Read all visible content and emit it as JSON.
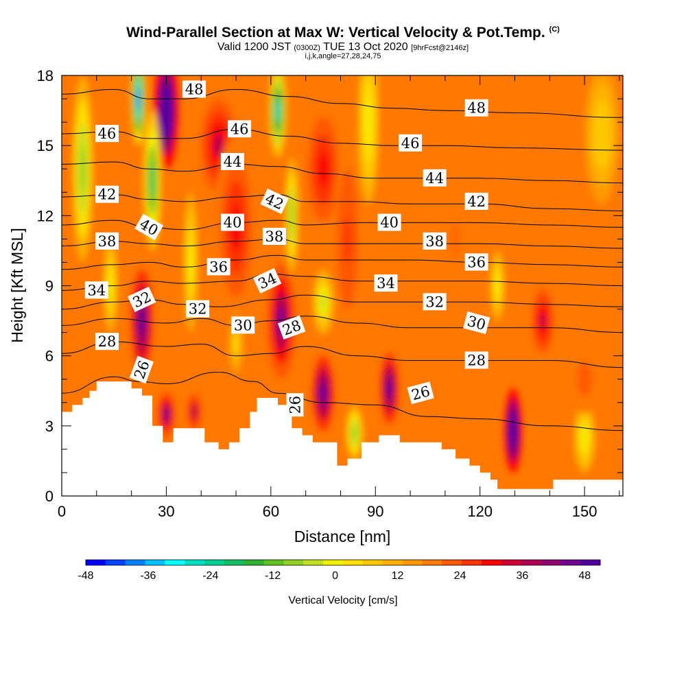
{
  "header": {
    "title": "Wind-Parallel Section at Max W: Vertical Velocity & Pot.Temp.",
    "title_mark": "(C)",
    "valid_prefix": "Valid 1200 JST",
    "valid_utc": "(0300Z)",
    "valid_date": "TUE 13 Oct 2020",
    "forecast": "[9hrFcst@2146z]",
    "grid_info": "i,j,k,angle=27,28,24,75"
  },
  "chart_data": {
    "type": "heatmap",
    "xlabel": "Distance [nm]",
    "ylabel": "Height [Kft MSL]",
    "xlim": [
      0,
      161
    ],
    "ylim": [
      0,
      18
    ],
    "x_ticks": [
      0,
      30,
      60,
      90,
      120,
      150
    ],
    "y_ticks": [
      0,
      3,
      6,
      9,
      12,
      15,
      18
    ],
    "colorbar": {
      "label": "Vertical Velocity [cm/s]",
      "range": [
        -48,
        51
      ],
      "step": 3,
      "tick_values": [
        -48,
        -36,
        -24,
        -12,
        0,
        12,
        24,
        36,
        48
      ],
      "colors": [
        "#0000ff",
        "#0040ff",
        "#0080ff",
        "#00c0ff",
        "#00ffff",
        "#00e0c0",
        "#00d090",
        "#10c060",
        "#30b030",
        "#60c020",
        "#90d020",
        "#c0e020",
        "#f0f000",
        "#ffe000",
        "#ffc800",
        "#ffb000",
        "#ff9800",
        "#ff7800",
        "#ff5800",
        "#ff3000",
        "#ff0000",
        "#d00030",
        "#b00050",
        "#900070",
        "#700090",
        "#5000a0"
      ]
    },
    "terrain_top_kft": [
      [
        0,
        3.6
      ],
      [
        3,
        3.6
      ],
      [
        3,
        3.9
      ],
      [
        6,
        3.9
      ],
      [
        6,
        4.2
      ],
      [
        8,
        4.2
      ],
      [
        8,
        4.5
      ],
      [
        10,
        4.5
      ],
      [
        10,
        4.9
      ],
      [
        20,
        4.9
      ],
      [
        20,
        4.6
      ],
      [
        23,
        4.6
      ],
      [
        23,
        4.3
      ],
      [
        26,
        4.3
      ],
      [
        26,
        3.0
      ],
      [
        29,
        3.0
      ],
      [
        29,
        2.3
      ],
      [
        32,
        2.3
      ],
      [
        32,
        2.9
      ],
      [
        41,
        2.9
      ],
      [
        41,
        2.3
      ],
      [
        45,
        2.3
      ],
      [
        45,
        2.0
      ],
      [
        48,
        2.0
      ],
      [
        48,
        2.3
      ],
      [
        51,
        2.3
      ],
      [
        51,
        2.9
      ],
      [
        54,
        2.9
      ],
      [
        54,
        3.6
      ],
      [
        56,
        3.6
      ],
      [
        56,
        4.2
      ],
      [
        62,
        4.2
      ],
      [
        62,
        3.9
      ],
      [
        66,
        3.9
      ],
      [
        66,
        2.9
      ],
      [
        69,
        2.9
      ],
      [
        69,
        2.6
      ],
      [
        72,
        2.6
      ],
      [
        72,
        2.3
      ],
      [
        79,
        2.3
      ],
      [
        79,
        1.3
      ],
      [
        82,
        1.3
      ],
      [
        82,
        1.6
      ],
      [
        86,
        1.6
      ],
      [
        86,
        2.3
      ],
      [
        91,
        2.3
      ],
      [
        91,
        2.6
      ],
      [
        97,
        2.6
      ],
      [
        97,
        2.3
      ],
      [
        109,
        2.3
      ],
      [
        109,
        2.0
      ],
      [
        113,
        2.0
      ],
      [
        113,
        1.6
      ],
      [
        117,
        1.6
      ],
      [
        117,
        1.3
      ],
      [
        120,
        1.3
      ],
      [
        120,
        1.0
      ],
      [
        123,
        1.0
      ],
      [
        123,
        0.7
      ],
      [
        125,
        0.7
      ],
      [
        125,
        0.3
      ],
      [
        141,
        0.3
      ],
      [
        141,
        0.7
      ],
      [
        161,
        0.7
      ]
    ],
    "theta_contours": [
      {
        "label": "26",
        "points": [
          [
            0,
            4.4
          ],
          [
            15,
            5.1
          ],
          [
            22,
            4.9
          ],
          [
            30,
            4.8
          ],
          [
            45,
            5.3
          ],
          [
            55,
            4.9
          ],
          [
            62,
            4.4
          ],
          [
            75,
            4.0
          ],
          [
            90,
            3.9
          ],
          [
            105,
            3.4
          ],
          [
            120,
            3.3
          ],
          [
            140,
            3.0
          ],
          [
            161,
            2.8
          ]
        ]
      },
      {
        "label": "28",
        "points": [
          [
            0,
            6.1
          ],
          [
            15,
            6.6
          ],
          [
            30,
            6.4
          ],
          [
            40,
            6.5
          ],
          [
            50,
            6.0
          ],
          [
            60,
            6.1
          ],
          [
            70,
            6.4
          ],
          [
            85,
            6.0
          ],
          [
            100,
            5.8
          ],
          [
            120,
            5.8
          ],
          [
            140,
            5.8
          ],
          [
            161,
            5.5
          ]
        ]
      },
      {
        "label": "30",
        "points": [
          [
            0,
            7.3
          ],
          [
            15,
            7.6
          ],
          [
            30,
            7.4
          ],
          [
            40,
            7.6
          ],
          [
            50,
            7.3
          ],
          [
            60,
            7.5
          ],
          [
            70,
            7.7
          ],
          [
            85,
            7.4
          ],
          [
            100,
            7.2
          ],
          [
            120,
            7.2
          ],
          [
            140,
            7.2
          ],
          [
            161,
            7.0
          ]
        ]
      },
      {
        "label": "32",
        "points": [
          [
            0,
            8.0
          ],
          [
            15,
            8.3
          ],
          [
            25,
            8.4
          ],
          [
            35,
            8.2
          ],
          [
            45,
            8.1
          ],
          [
            60,
            8.4
          ],
          [
            70,
            8.6
          ],
          [
            85,
            8.3
          ],
          [
            100,
            8.3
          ],
          [
            120,
            8.3
          ],
          [
            140,
            8.2
          ],
          [
            161,
            8.1
          ]
        ]
      },
      {
        "label": "34",
        "points": [
          [
            0,
            8.8
          ],
          [
            15,
            9.0
          ],
          [
            25,
            9.2
          ],
          [
            35,
            9.1
          ],
          [
            50,
            9.2
          ],
          [
            60,
            9.5
          ],
          [
            70,
            9.4
          ],
          [
            85,
            9.2
          ],
          [
            100,
            9.2
          ],
          [
            120,
            9.2
          ],
          [
            140,
            9.1
          ],
          [
            161,
            9.0
          ]
        ]
      },
      {
        "label": "36",
        "points": [
          [
            0,
            9.7
          ],
          [
            15,
            9.9
          ],
          [
            25,
            10.0
          ],
          [
            35,
            9.8
          ],
          [
            50,
            10.1
          ],
          [
            62,
            10.3
          ],
          [
            70,
            10.1
          ],
          [
            85,
            10.1
          ],
          [
            100,
            10.1
          ],
          [
            120,
            10.0
          ],
          [
            140,
            9.9
          ],
          [
            161,
            9.8
          ]
        ]
      },
      {
        "label": "38",
        "points": [
          [
            0,
            10.7
          ],
          [
            15,
            10.9
          ],
          [
            25,
            10.8
          ],
          [
            35,
            10.7
          ],
          [
            50,
            10.9
          ],
          [
            62,
            11.0
          ],
          [
            70,
            10.8
          ],
          [
            85,
            10.8
          ],
          [
            100,
            10.8
          ],
          [
            120,
            10.8
          ],
          [
            140,
            10.7
          ],
          [
            161,
            10.6
          ]
        ]
      },
      {
        "label": "40",
        "points": [
          [
            0,
            11.6
          ],
          [
            15,
            11.8
          ],
          [
            25,
            11.5
          ],
          [
            35,
            11.4
          ],
          [
            50,
            11.7
          ],
          [
            62,
            11.8
          ],
          [
            70,
            11.6
          ],
          [
            85,
            11.7
          ],
          [
            100,
            11.7
          ],
          [
            120,
            11.7
          ],
          [
            140,
            11.6
          ],
          [
            161,
            11.5
          ]
        ]
      },
      {
        "label": "42",
        "points": [
          [
            0,
            12.8
          ],
          [
            15,
            12.9
          ],
          [
            25,
            12.7
          ],
          [
            35,
            12.6
          ],
          [
            50,
            12.8
          ],
          [
            62,
            12.9
          ],
          [
            70,
            12.6
          ],
          [
            85,
            12.6
          ],
          [
            100,
            12.5
          ],
          [
            120,
            12.5
          ],
          [
            140,
            12.3
          ],
          [
            161,
            12.2
          ]
        ]
      },
      {
        "label": "44",
        "points": [
          [
            0,
            14.2
          ],
          [
            15,
            14.3
          ],
          [
            25,
            14.0
          ],
          [
            35,
            13.9
          ],
          [
            50,
            14.2
          ],
          [
            62,
            14.1
          ],
          [
            75,
            13.8
          ],
          [
            90,
            13.6
          ],
          [
            105,
            13.6
          ],
          [
            120,
            13.6
          ],
          [
            140,
            13.5
          ],
          [
            161,
            13.4
          ]
        ]
      },
      {
        "label": "46",
        "points": [
          [
            0,
            15.5
          ],
          [
            15,
            15.6
          ],
          [
            25,
            15.3
          ],
          [
            35,
            15.3
          ],
          [
            50,
            15.7
          ],
          [
            65,
            15.4
          ],
          [
            80,
            15.1
          ],
          [
            95,
            15.0
          ],
          [
            110,
            15.0
          ],
          [
            130,
            14.9
          ],
          [
            161,
            14.8
          ]
        ]
      },
      {
        "label": "48",
        "points": [
          [
            0,
            17.2
          ],
          [
            15,
            17.4
          ],
          [
            25,
            17.0
          ],
          [
            35,
            17.0
          ],
          [
            50,
            17.4
          ],
          [
            65,
            17.1
          ],
          [
            80,
            16.8
          ],
          [
            95,
            16.6
          ],
          [
            110,
            16.5
          ],
          [
            130,
            16.4
          ],
          [
            161,
            16.2
          ]
        ]
      }
    ],
    "contour_labels": [
      {
        "text": "48",
        "x": 38,
        "y": 17.4,
        "angle": 0
      },
      {
        "text": "46",
        "x": 13,
        "y": 15.5,
        "angle": 0
      },
      {
        "text": "46",
        "x": 51,
        "y": 15.7,
        "angle": 0
      },
      {
        "text": "46",
        "x": 100,
        "y": 15.1,
        "angle": 0
      },
      {
        "text": "48",
        "x": 119,
        "y": 16.6,
        "angle": 0
      },
      {
        "text": "44",
        "x": 49,
        "y": 14.3,
        "angle": 0
      },
      {
        "text": "44",
        "x": 107,
        "y": 13.6,
        "angle": 0
      },
      {
        "text": "42",
        "x": 13,
        "y": 12.9,
        "angle": 0
      },
      {
        "text": "42",
        "x": 61,
        "y": 12.6,
        "angle": 25
      },
      {
        "text": "42",
        "x": 119,
        "y": 12.6,
        "angle": 0
      },
      {
        "text": "40",
        "x": 25,
        "y": 11.5,
        "angle": 30
      },
      {
        "text": "40",
        "x": 49,
        "y": 11.7,
        "angle": 0
      },
      {
        "text": "40",
        "x": 94,
        "y": 11.7,
        "angle": 0
      },
      {
        "text": "38",
        "x": 13,
        "y": 10.9,
        "angle": 0
      },
      {
        "text": "38",
        "x": 61,
        "y": 11.1,
        "angle": 0
      },
      {
        "text": "38",
        "x": 107,
        "y": 10.9,
        "angle": 0
      },
      {
        "text": "36",
        "x": 45,
        "y": 9.8,
        "angle": 0
      },
      {
        "text": "36",
        "x": 119,
        "y": 10.0,
        "angle": 0
      },
      {
        "text": "34",
        "x": 10,
        "y": 8.8,
        "angle": 0
      },
      {
        "text": "34",
        "x": 59,
        "y": 9.2,
        "angle": -25
      },
      {
        "text": "34",
        "x": 93,
        "y": 9.1,
        "angle": 0
      },
      {
        "text": "32",
        "x": 23,
        "y": 8.4,
        "angle": -25
      },
      {
        "text": "32",
        "x": 39,
        "y": 8.0,
        "angle": 0
      },
      {
        "text": "32",
        "x": 107,
        "y": 8.3,
        "angle": 0
      },
      {
        "text": "30",
        "x": 52,
        "y": 7.3,
        "angle": 0
      },
      {
        "text": "30",
        "x": 119,
        "y": 7.4,
        "angle": 15
      },
      {
        "text": "28",
        "x": 13,
        "y": 6.6,
        "angle": 0
      },
      {
        "text": "28",
        "x": 66,
        "y": 7.2,
        "angle": -20
      },
      {
        "text": "28",
        "x": 119,
        "y": 5.8,
        "angle": 0
      },
      {
        "text": "26",
        "x": 23,
        "y": 5.4,
        "angle": -70
      },
      {
        "text": "26",
        "x": 67,
        "y": 3.9,
        "angle": -90
      },
      {
        "text": "26",
        "x": 103,
        "y": 4.4,
        "angle": -15
      }
    ],
    "w_features": [
      {
        "x": 30,
        "y": 16.5,
        "rx": 3.5,
        "ry": 2.5,
        "w": 40
      },
      {
        "x": 23,
        "y": 7.5,
        "rx": 3.0,
        "ry": 2.2,
        "w": 30
      },
      {
        "x": 63,
        "y": 7.5,
        "rx": 4.0,
        "ry": 2.5,
        "w": 26
      },
      {
        "x": 75,
        "y": 4.4,
        "rx": 3.0,
        "ry": 1.6,
        "w": 30
      },
      {
        "x": 94,
        "y": 4.6,
        "rx": 2.5,
        "ry": 1.5,
        "w": 30
      },
      {
        "x": 129.5,
        "y": 2.8,
        "rx": 2.5,
        "ry": 1.8,
        "w": 40
      },
      {
        "x": 138,
        "y": 7.5,
        "rx": 3.0,
        "ry": 1.4,
        "w": 18
      },
      {
        "x": 30,
        "y": 3.5,
        "rx": 2.5,
        "ry": 1.0,
        "w": 24
      },
      {
        "x": 38,
        "y": 3.6,
        "rx": 2.0,
        "ry": 0.8,
        "w": 20
      },
      {
        "x": 45,
        "y": 15.0,
        "rx": 5.0,
        "ry": 2.0,
        "w": 18
      },
      {
        "x": 50,
        "y": 11.5,
        "rx": 6.0,
        "ry": 4.0,
        "w": 12
      },
      {
        "x": 75,
        "y": 14.0,
        "rx": 6.0,
        "ry": 3.0,
        "w": 14
      },
      {
        "x": 82,
        "y": 11.0,
        "rx": 4.0,
        "ry": 4.0,
        "w": 10
      },
      {
        "x": 22,
        "y": 17.0,
        "rx": 2.0,
        "ry": 2.0,
        "w": -42
      },
      {
        "x": 26,
        "y": 13.5,
        "rx": 2.5,
        "ry": 3.0,
        "w": -27
      },
      {
        "x": 6,
        "y": 14.0,
        "rx": 3.0,
        "ry": 4.0,
        "w": -18
      },
      {
        "x": 62,
        "y": 16.5,
        "rx": 2.5,
        "ry": 2.0,
        "w": -33
      },
      {
        "x": 66,
        "y": 12.0,
        "rx": 2.0,
        "ry": 2.5,
        "w": -18
      },
      {
        "x": 84,
        "y": 2.7,
        "rx": 2.5,
        "ry": 1.2,
        "w": -18
      },
      {
        "x": 75,
        "y": 8.3,
        "rx": 3.0,
        "ry": 1.4,
        "w": -15
      },
      {
        "x": 88,
        "y": 16.0,
        "rx": 3.0,
        "ry": 3.5,
        "w": -12
      },
      {
        "x": 125,
        "y": 9.0,
        "rx": 2.0,
        "ry": 1.5,
        "w": -10
      },
      {
        "x": 150,
        "y": 2.5,
        "rx": 3.0,
        "ry": 1.5,
        "w": -12
      },
      {
        "x": 50,
        "y": 6.5,
        "rx": 2.0,
        "ry": 1.3,
        "w": -8
      },
      {
        "x": 14,
        "y": 9.0,
        "rx": 2.0,
        "ry": 2.0,
        "w": -12
      },
      {
        "x": 37,
        "y": 10.0,
        "rx": 2.0,
        "ry": 3.0,
        "w": -10
      },
      {
        "x": 113,
        "y": 11.0,
        "rx": 3.0,
        "ry": 3.0,
        "w": 6
      },
      {
        "x": 145,
        "y": 13.0,
        "rx": 8.0,
        "ry": 3.0,
        "w": 5
      },
      {
        "x": 155,
        "y": 15.5,
        "rx": 5.0,
        "ry": 3.0,
        "w": -6
      },
      {
        "x": 150,
        "y": 5.0,
        "rx": 4.0,
        "ry": 1.5,
        "w": 8
      }
    ]
  }
}
